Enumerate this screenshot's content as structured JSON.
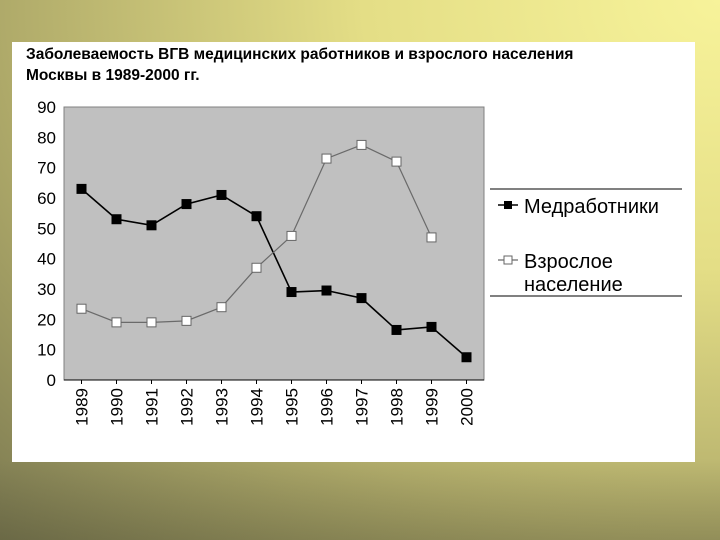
{
  "chart_data": {
    "type": "line",
    "title_line1": "Заболеваемость ВГВ медицинских работников и взрослого населения",
    "title_line2": "Москвы в 1989-2000 гг.",
    "categories": [
      "1989",
      "1990",
      "1991",
      "1992",
      "1993",
      "1994",
      "1995",
      "1996",
      "1997",
      "1998",
      "1999",
      "2000"
    ],
    "ylim": [
      0,
      90
    ],
    "yticks": [
      "0",
      "10",
      "20",
      "30",
      "40",
      "50",
      "60",
      "70",
      "80",
      "90"
    ],
    "grid": false,
    "legend_position": "right",
    "series": [
      {
        "name": "Медработники",
        "marker": "filled-square",
        "color": "#000000",
        "values": [
          63,
          53,
          51,
          58,
          61,
          54,
          29,
          29.5,
          27,
          16.5,
          17.5,
          7.5
        ]
      },
      {
        "name_line1": "Взрослое",
        "name_line2": "население",
        "marker": "hollow-square",
        "color": "#ffffff",
        "values": [
          23.5,
          19,
          19,
          19.5,
          24,
          37,
          47.5,
          73,
          77.5,
          72,
          47,
          null
        ]
      }
    ],
    "plot_background": "#c0c0c0"
  }
}
